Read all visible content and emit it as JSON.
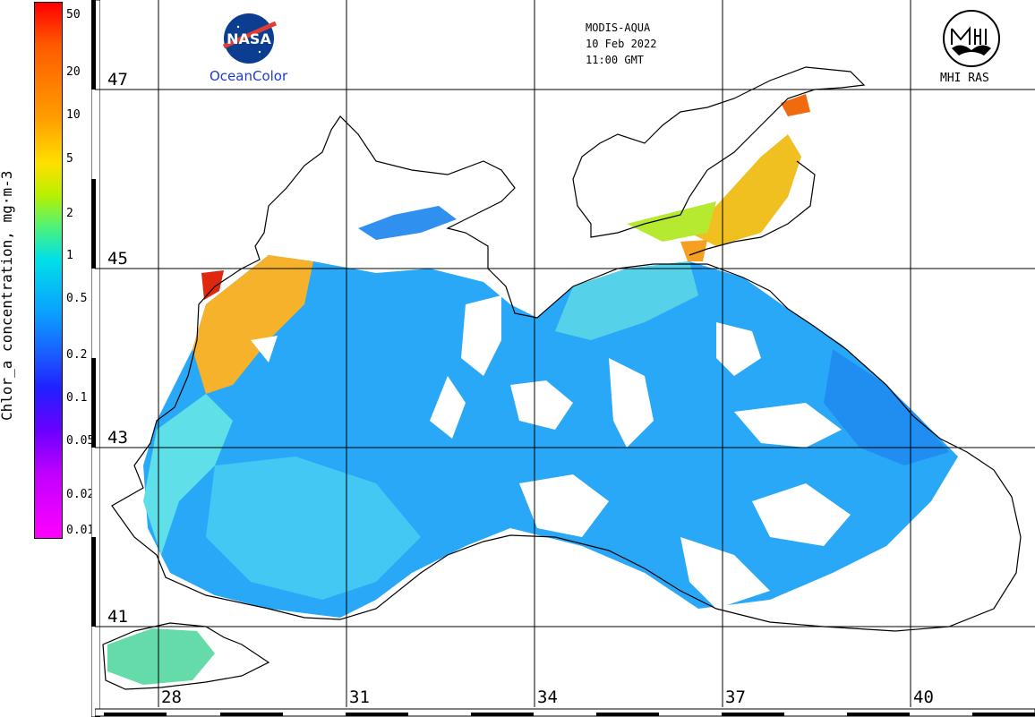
{
  "colorbar": {
    "title": "Chlor_a concentration, mg·m-3",
    "ticks": [
      "50",
      "20",
      "10",
      "5",
      "2",
      "1",
      "0.5",
      "0.2",
      "0.1",
      "0.05",
      "0.02",
      "0.01"
    ]
  },
  "grid": {
    "latitudes": [
      "47",
      "45",
      "43",
      "41"
    ],
    "longitudes": [
      "28",
      "31",
      "34",
      "37",
      "40"
    ]
  },
  "logos": {
    "nasa": "NASA",
    "oceancolor": "OceanColor",
    "mhi": "MHI RAS"
  },
  "info": {
    "sensor": "MODIS-AQUA",
    "date": "10 Feb 2022",
    "time": "11:00 GMT"
  },
  "colors": {
    "land_outline": "#000000",
    "high_chlor": "#ff3000",
    "mid_chlor": "#ffd000",
    "low_chlor": "#20a8ff"
  }
}
